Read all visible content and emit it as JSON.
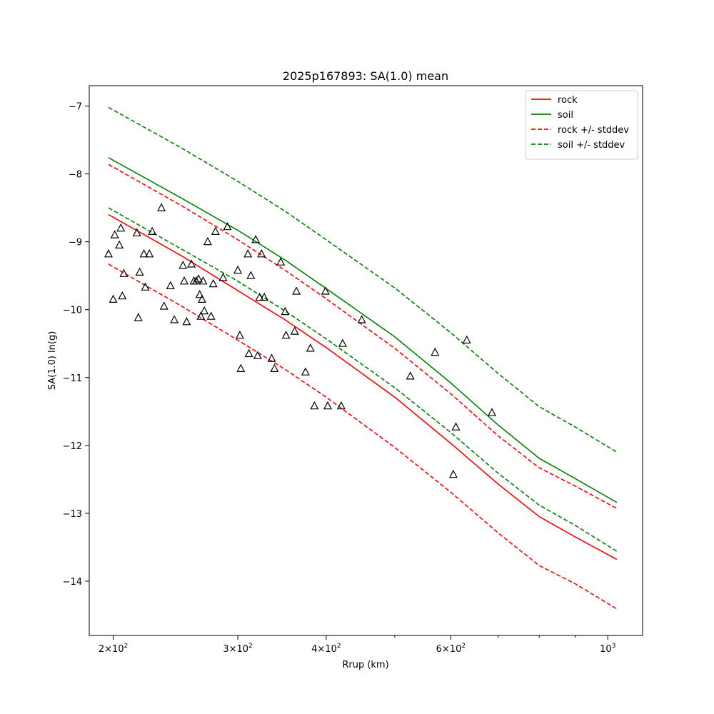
{
  "chart_data": {
    "type": "line",
    "title": "2025p167893: SA(1.0) mean",
    "xlabel": "Rrup (km)",
    "ylabel": "SA(1.0) ln(g)",
    "xscale": "log",
    "xlim": [
      185,
      1120
    ],
    "ylim": [
      -14.8,
      -6.7
    ],
    "grid": false,
    "legend_position": "top-right",
    "x_ticks": [
      {
        "value": 200,
        "base": "2×10",
        "exp": "2"
      },
      {
        "value": 300,
        "base": "3×10",
        "exp": "2"
      },
      {
        "value": 400,
        "base": "4×10",
        "exp": "2"
      },
      {
        "value": 600,
        "base": "6×10",
        "exp": "2"
      },
      {
        "value": 1000,
        "base": "10",
        "exp": "3"
      }
    ],
    "x_minor_ticks": [
      500,
      700,
      800,
      900
    ],
    "y_ticks": [
      -7,
      -8,
      -9,
      -10,
      -11,
      -12,
      -13,
      -14
    ],
    "y_tick_labels": [
      "−7",
      "−8",
      "−9",
      "−10",
      "−11",
      "−12",
      "−13",
      "−14"
    ],
    "series": [
      {
        "name": "rock",
        "color": "#ff0000",
        "dash": "solid",
        "x": [
          197,
          250,
          300,
          350,
          400,
          500,
          600,
          700,
          800,
          900,
          1030
        ],
        "y": [
          -8.6,
          -9.21,
          -9.72,
          -10.15,
          -10.56,
          -11.29,
          -11.97,
          -12.57,
          -13.05,
          -13.35,
          -13.68
        ]
      },
      {
        "name": "soil",
        "color": "#008000",
        "dash": "solid",
        "x": [
          197,
          250,
          300,
          350,
          400,
          500,
          600,
          700,
          800,
          900,
          1030
        ],
        "y": [
          -7.76,
          -8.36,
          -8.83,
          -9.27,
          -9.69,
          -10.4,
          -11.08,
          -11.7,
          -12.19,
          -12.49,
          -12.84
        ]
      },
      {
        "name": "rock +/- stddev",
        "color": "#ff0000",
        "dash": "dashed",
        "x": [
          197,
          250,
          300,
          350,
          400,
          500,
          600,
          700,
          800,
          900,
          1030
        ],
        "y": [
          -7.86,
          -8.47,
          -8.97,
          -9.42,
          -9.84,
          -10.57,
          -11.24,
          -11.86,
          -12.33,
          -12.6,
          -12.93
        ]
      },
      {
        "name": "rock +/- stddev",
        "color": "#ff0000",
        "dash": "dashed",
        "legend": false,
        "x": [
          197,
          250,
          300,
          350,
          400,
          500,
          600,
          700,
          800,
          900,
          1030
        ],
        "y": [
          -9.33,
          -9.95,
          -10.45,
          -10.88,
          -11.29,
          -12.03,
          -12.69,
          -13.29,
          -13.77,
          -14.04,
          -14.41
        ]
      },
      {
        "name": "soil +/- stddev",
        "color": "#008000",
        "dash": "dashed",
        "x": [
          197,
          250,
          300,
          350,
          400,
          500,
          600,
          700,
          800,
          900,
          1030
        ],
        "y": [
          -7.02,
          -7.62,
          -8.11,
          -8.55,
          -8.97,
          -9.68,
          -10.34,
          -10.94,
          -11.43,
          -11.73,
          -12.1
        ]
      },
      {
        "name": "soil +/- stddev",
        "color": "#008000",
        "dash": "dashed",
        "legend": false,
        "x": [
          197,
          250,
          300,
          350,
          400,
          500,
          600,
          700,
          800,
          900,
          1030
        ],
        "y": [
          -8.5,
          -9.11,
          -9.58,
          -10.02,
          -10.43,
          -11.15,
          -11.81,
          -12.41,
          -12.88,
          -13.18,
          -13.56
        ]
      }
    ],
    "observations": {
      "marker": "triangle",
      "color": "#000000",
      "points": [
        [
          197,
          -9.18
        ],
        [
          200,
          -9.85
        ],
        [
          201,
          -8.9
        ],
        [
          204,
          -9.05
        ],
        [
          205,
          -8.8
        ],
        [
          206,
          -9.8
        ],
        [
          207,
          -9.47
        ],
        [
          216,
          -8.87
        ],
        [
          217,
          -10.12
        ],
        [
          218,
          -9.45
        ],
        [
          221,
          -9.18
        ],
        [
          222,
          -9.67
        ],
        [
          225,
          -9.18
        ],
        [
          227,
          -8.85
        ],
        [
          234,
          -8.5
        ],
        [
          236,
          -9.95
        ],
        [
          241,
          -9.65
        ],
        [
          244,
          -10.15
        ],
        [
          251,
          -9.35
        ],
        [
          252,
          -9.58
        ],
        [
          254,
          -10.18
        ],
        [
          258,
          -9.33
        ],
        [
          260,
          -9.58
        ],
        [
          262,
          -9.58
        ],
        [
          264,
          -9.55
        ],
        [
          265,
          -9.78
        ],
        [
          266,
          -10.1
        ],
        [
          267,
          -9.85
        ],
        [
          268,
          -9.58
        ],
        [
          269,
          -10.02
        ],
        [
          272,
          -9.0
        ],
        [
          275,
          -10.1
        ],
        [
          277,
          -9.62
        ],
        [
          279,
          -8.85
        ],
        [
          286,
          -9.53
        ],
        [
          290,
          -8.78
        ],
        [
          300,
          -9.42
        ],
        [
          302,
          -10.38
        ],
        [
          303,
          -10.87
        ],
        [
          310,
          -9.18
        ],
        [
          311,
          -10.65
        ],
        [
          313,
          -9.5
        ],
        [
          318,
          -8.97
        ],
        [
          320,
          -10.68
        ],
        [
          322,
          -9.82
        ],
        [
          324,
          -9.18
        ],
        [
          327,
          -9.82
        ],
        [
          335,
          -10.72
        ],
        [
          338,
          -10.87
        ],
        [
          345,
          -9.3
        ],
        [
          350,
          -10.03
        ],
        [
          351,
          -10.38
        ],
        [
          361,
          -10.32
        ],
        [
          363,
          -9.73
        ],
        [
          374,
          -10.92
        ],
        [
          380,
          -10.57
        ],
        [
          385,
          -11.42
        ],
        [
          399,
          -9.73
        ],
        [
          402,
          -11.42
        ],
        [
          420,
          -11.42
        ],
        [
          422,
          -10.5
        ],
        [
          449,
          -10.15
        ],
        [
          526,
          -10.98
        ],
        [
          570,
          -10.63
        ],
        [
          605,
          -12.43
        ],
        [
          610,
          -11.73
        ],
        [
          632,
          -10.45
        ],
        [
          686,
          -11.52
        ]
      ]
    }
  }
}
